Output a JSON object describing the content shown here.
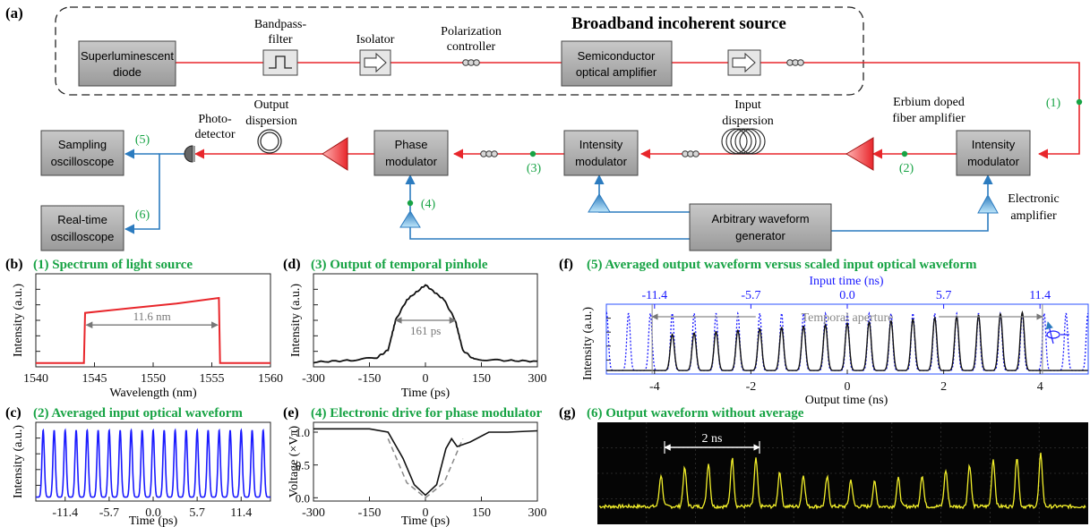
{
  "colors": {
    "optical_line": "#e8262b",
    "electrical_line": "#2b7bbf",
    "tap_point": "#17a344",
    "label_green": "#17a344",
    "box_fill": "#a9a9a9",
    "triangle_red": "#e8262b",
    "triangle_blue": "#8fd0f0",
    "spectrum_line": "#e8262b",
    "input_wave": "#1a1aff",
    "dotted_wave": "#1a1aff",
    "scope_bg": "#050505",
    "scope_trace": "#f2ef2a"
  },
  "setup": {
    "panel_label": "(a)",
    "source_title": "Broadband incoherent source",
    "boxes": {
      "sld": [
        "Superluminescent",
        "diode"
      ],
      "soa": [
        "Semiconductor",
        "optical amplifier"
      ],
      "im1": [
        "Intensity",
        "modulator"
      ],
      "im2": [
        "Intensity",
        "modulator"
      ],
      "pm": [
        "Phase",
        "modulator"
      ],
      "sampling": [
        "Sampling",
        "oscilloscope"
      ],
      "realtime": [
        "Real-time",
        "oscilloscope"
      ],
      "awg": [
        "Arbitrary waveform",
        "generator"
      ]
    },
    "labels": {
      "bandpass": [
        "Bandpass-",
        "filter"
      ],
      "isolator": "Isolator",
      "polarization": [
        "Polarization",
        "controller"
      ],
      "edfa": [
        "Erbium doped",
        "fiber amplifier"
      ],
      "input_dispersion": [
        "Input",
        "dispersion"
      ],
      "output_dispersion": [
        "Output",
        "dispersion"
      ],
      "photodetector": [
        "Photo-",
        "detector"
      ],
      "electronic_amp": [
        "Electronic",
        "amplifier"
      ]
    },
    "taps": [
      "(1)",
      "(2)",
      "(3)",
      "(4)",
      "(5)",
      "(6)"
    ]
  },
  "panels": {
    "b": {
      "label": "(b)",
      "title": "(1) Spectrum of light source"
    },
    "c": {
      "label": "(c)",
      "title": "(2) Averaged input optical waveform"
    },
    "d": {
      "label": "(d)",
      "title": "(3) Output of temporal pinhole"
    },
    "e": {
      "label": "(e)",
      "title": "(4) Electronic drive for phase modulator"
    },
    "f": {
      "label": "(f)",
      "title": "(5) Averaged output waveform versus scaled input optical waveform"
    },
    "g": {
      "label": "(g)",
      "title": "(6) Output waveform without average"
    }
  },
  "chart_data": [
    {
      "id": "b",
      "type": "line",
      "title": "(1) Spectrum of light source",
      "xlabel": "Wavelength (nm)",
      "ylabel": "Intensity (a.u.)",
      "xlim": [
        1540,
        1560
      ],
      "xticks": [
        "1540",
        "1545",
        "1550",
        "1555",
        "1560"
      ],
      "annotation": "11.6 nm",
      "series": [
        {
          "x": [
            1540,
            1544.1,
            1544.2,
            1548,
            1552,
            1555.6,
            1555.7,
            1560
          ],
          "y": [
            0.04,
            0.04,
            0.58,
            0.63,
            0.68,
            0.74,
            0.04,
            0.04
          ]
        }
      ]
    },
    {
      "id": "c",
      "type": "line",
      "title": "(2) Averaged input optical waveform",
      "xlabel": "Time (ps)",
      "ylabel": "Intensity (a.u.)",
      "xlim": [
        -15.2,
        15.2
      ],
      "xticks": [
        "-11.4",
        "-5.7",
        "0.0",
        "5.7",
        "11.4"
      ],
      "pulse_period": 1.425,
      "pulse_count": 21
    },
    {
      "id": "d",
      "type": "line",
      "title": "(3) Output of temporal pinhole",
      "xlabel": "Time (ps)",
      "ylabel": "Intensity (a.u.)",
      "xlim": [
        -300,
        300
      ],
      "xticks": [
        "-300",
        "-150",
        "0",
        "150",
        "300"
      ],
      "annotation": "161 ps",
      "series": [
        {
          "x": [
            -300,
            -200,
            -130,
            -100,
            -80,
            -50,
            0,
            50,
            80,
            100,
            130,
            200,
            300
          ],
          "y": [
            0.05,
            0.07,
            0.1,
            0.18,
            0.5,
            0.72,
            0.88,
            0.72,
            0.5,
            0.18,
            0.08,
            0.07,
            0.06
          ]
        }
      ]
    },
    {
      "id": "e",
      "type": "line",
      "title": "(4) Electronic drive for phase modulator",
      "xlabel": "Time (ps)",
      "ylabel": "Voltage (×Vπ)",
      "xlim": [
        -300,
        300
      ],
      "ylim": [
        -0.05,
        1.15
      ],
      "xticks": [
        "-300",
        "-150",
        "0",
        "150",
        "300"
      ],
      "yticks": [
        "0.0",
        "0.5",
        "1.0"
      ],
      "series": [
        {
          "x": [
            -300,
            -150,
            -100,
            -60,
            -30,
            0,
            30,
            55,
            70,
            85,
            120,
            170,
            220,
            300
          ],
          "y": [
            1.05,
            1.05,
            1.0,
            0.6,
            0.2,
            0.04,
            0.2,
            0.75,
            0.9,
            0.78,
            0.85,
            1.0,
            1.0,
            1.02
          ]
        },
        {
          "dashed": true,
          "x": [
            -100,
            -50,
            0,
            50,
            100
          ],
          "y": [
            0.9,
            0.23,
            0.0,
            0.23,
            0.9
          ]
        }
      ]
    },
    {
      "id": "f",
      "type": "line",
      "title": "(5) Averaged output waveform versus scaled input optical waveform",
      "xlabel": "Output time (ns)",
      "ylabel": "Intensity (a.u.)",
      "x2label": "Input time (ns)",
      "xlim": [
        -5,
        5
      ],
      "xticks": [
        "-4",
        "-2",
        "0",
        "2",
        "4"
      ],
      "x2ticks": [
        "-11.4",
        "-5.7",
        "0.0",
        "5.7",
        "11.4"
      ],
      "annotation": "Temporal aperture",
      "pulse_period": 0.454,
      "aperture": [
        -4.05,
        4.05
      ]
    },
    {
      "id": "g",
      "type": "line",
      "title": "(6) Output waveform without average",
      "annotation": "2 ns",
      "pulse_count": 17
    }
  ]
}
